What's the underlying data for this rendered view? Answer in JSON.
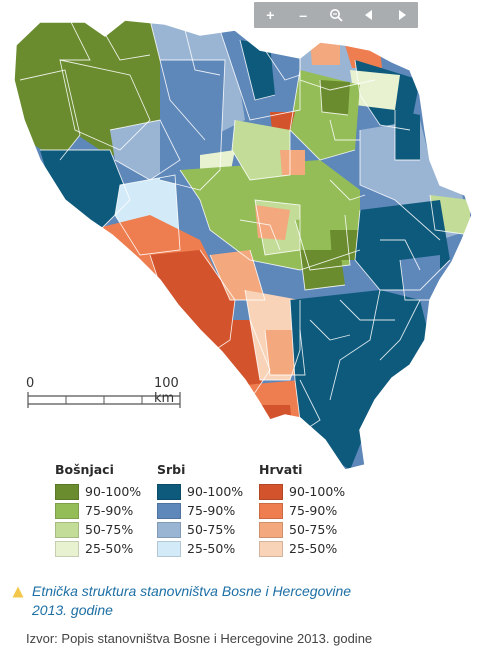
{
  "toolbar": {
    "buttons": [
      {
        "name": "zoom-in",
        "glyph": "+"
      },
      {
        "name": "zoom-out",
        "glyph": "–"
      },
      {
        "name": "zoom-reset",
        "glyph": "magnifier"
      },
      {
        "name": "pan-left",
        "glyph": "◂"
      },
      {
        "name": "pan-right",
        "glyph": "▸"
      }
    ]
  },
  "scale": {
    "start_label": "0",
    "end_label": "100 km"
  },
  "legend": {
    "groups": [
      {
        "title": "Bošnjaci",
        "classes": [
          {
            "label": "90-100%",
            "color": "#6a8c2e"
          },
          {
            "label": "75-90%",
            "color": "#94bd57"
          },
          {
            "label": "50-75%",
            "color": "#c3dc98"
          },
          {
            "label": "25-50%",
            "color": "#e8f2d0"
          }
        ]
      },
      {
        "title": "Srbi",
        "classes": [
          {
            "label": "90-100%",
            "color": "#0d5a7c"
          },
          {
            "label": "75-90%",
            "color": "#5e87ba"
          },
          {
            "label": "50-75%",
            "color": "#9ab5d4"
          },
          {
            "label": "25-50%",
            "color": "#d3ebf8"
          }
        ]
      },
      {
        "title": "Hrvati",
        "classes": [
          {
            "label": "90-100%",
            "color": "#d2532c"
          },
          {
            "label": "75-90%",
            "color": "#ee7d4f"
          },
          {
            "label": "50-75%",
            "color": "#f3a87e"
          },
          {
            "label": "25-50%",
            "color": "#f8d3b8"
          }
        ]
      }
    ]
  },
  "caption": {
    "title_line1": "Etnička struktura stanovništva Bosne i Hercegovine",
    "title_line2": "2013. godine",
    "source": "Izvor: Popis stanovništva Bosne i Hercegovine 2013. godine"
  },
  "colors": {
    "accent": "#1d6fa5",
    "triangle": "#f2c84b",
    "toolbar": "#a9adb0",
    "border": "#ffffff"
  }
}
